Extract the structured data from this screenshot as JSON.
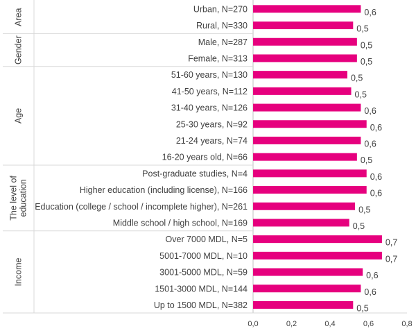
{
  "chart_data": {
    "type": "bar",
    "orientation": "horizontal",
    "bar_color": "#E6007E",
    "xlim": [
      0,
      0.8
    ],
    "x_ticks": [
      "0,0",
      "0,2",
      "0,4",
      "0,6",
      "0,8"
    ],
    "grid": false,
    "groups": [
      {
        "name": "Area",
        "items": [
          {
            "label": "Urban, N=270",
            "value": 0.56,
            "value_label": "0,6"
          },
          {
            "label": "Rural, N=330",
            "value": 0.52,
            "value_label": "0,5"
          }
        ]
      },
      {
        "name": "Gender",
        "items": [
          {
            "label": "Male, N=287",
            "value": 0.54,
            "value_label": "0,5"
          },
          {
            "label": "Female, N=313",
            "value": 0.54,
            "value_label": "0,5"
          }
        ]
      },
      {
        "name": "Age",
        "items": [
          {
            "label": "51-60 years, N=130",
            "value": 0.49,
            "value_label": "0,5"
          },
          {
            "label": "41-50 years, N=112",
            "value": 0.51,
            "value_label": "0,5"
          },
          {
            "label": "31-40 years, N=126",
            "value": 0.56,
            "value_label": "0,6"
          },
          {
            "label": "25-30 years, N=92",
            "value": 0.59,
            "value_label": "0,6"
          },
          {
            "label": "21-24 years, N=74",
            "value": 0.56,
            "value_label": "0,6"
          },
          {
            "label": "16-20 years old, N=66",
            "value": 0.54,
            "value_label": "0,5"
          }
        ]
      },
      {
        "name": "The level of education",
        "name_lines": [
          "The level of",
          "education"
        ],
        "items": [
          {
            "label": "Post-graduate studies, N=4",
            "value": 0.59,
            "value_label": "0,6"
          },
          {
            "label": "Higher education (including license), N=166",
            "value": 0.59,
            "value_label": "0,6"
          },
          {
            "label": "Education (college / school / incomplete higher), N=261",
            "value": 0.53,
            "value_label": "0,5"
          },
          {
            "label": "Middle school / high school, N=169",
            "value": 0.5,
            "value_label": "0,5"
          }
        ]
      },
      {
        "name": "Income",
        "items": [
          {
            "label": "Over 7000 MDL, N=5",
            "value": 0.67,
            "value_label": "0,7"
          },
          {
            "label": "5001-7000 MDL, N=10",
            "value": 0.67,
            "value_label": "0,7"
          },
          {
            "label": "3001-5000 MDL, N=59",
            "value": 0.57,
            "value_label": "0,6"
          },
          {
            "label": "1501-3000 MDL, N=144",
            "value": 0.56,
            "value_label": "0,6"
          },
          {
            "label": "Up to 1500 MDL, N=382",
            "value": 0.52,
            "value_label": "0,5"
          }
        ]
      }
    ]
  }
}
